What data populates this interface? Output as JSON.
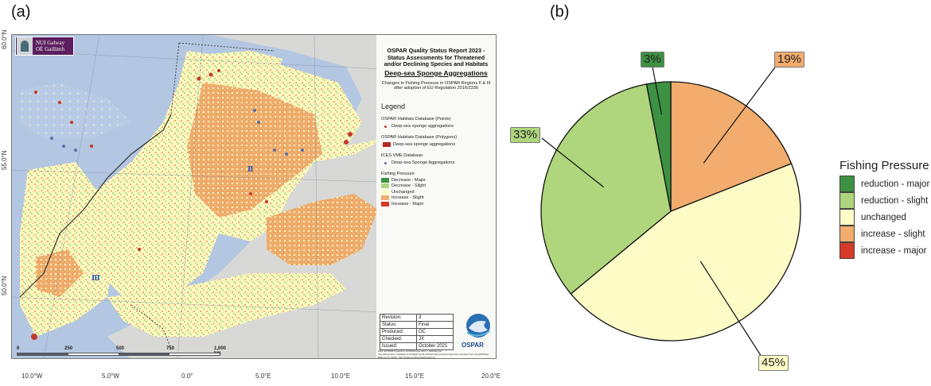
{
  "panels": {
    "a_label": "(a)",
    "b_label": "(b)"
  },
  "map": {
    "institution_badge": {
      "line1": "NUI Galway",
      "line2": "OÉ Gaillimh"
    },
    "title_lines": [
      "OSPAR Quality Status Report 2023 -",
      "Status Assessments for Threatened",
      "and/or Declining Species and Habitats"
    ],
    "subtitle": "Deep-sea Sponge Aggregations",
    "description": "Changes in Fishing Pressure in OSPAR Regions II & III after adoption of EU Regulation 2016/2336",
    "legend_heading": "Legend",
    "legend_groups": [
      {
        "title": "OSPAR Habitats Database (Points)",
        "item": "Deep-sea sponge aggregations",
        "symbol": "dot",
        "color": "#c0392b"
      },
      {
        "title": "OSPAR Habitats Database (Polygons)",
        "item": "Deep-sea sponge aggregations",
        "symbol": "swatch",
        "color": "#b22a22"
      },
      {
        "title": "ICES VME Database",
        "item": "Deep-sea Sponge Aggregations",
        "symbol": "dot",
        "color": "#5a6fa8"
      }
    ],
    "fishing_pressure": {
      "title": "Fishing Pressure",
      "items": [
        {
          "label": "Decrease - Major",
          "color": "#3d9142"
        },
        {
          "label": "Decrease - Slight",
          "color": "#afd67c"
        },
        {
          "label": "Unchanged",
          "color": "#fefcc6"
        },
        {
          "label": "Increase - Slight",
          "color": "#f2ac6e"
        },
        {
          "label": "Increase - Major",
          "color": "#d53a2a"
        }
      ]
    },
    "info_table": [
      {
        "key": "Revision:",
        "value": "3"
      },
      {
        "key": "Status:",
        "value": "Final"
      },
      {
        "key": "Produced:",
        "value": "OC"
      },
      {
        "key": "Checked:",
        "value": "JX"
      },
      {
        "key": "Issued:",
        "value": "October 2021"
      }
    ],
    "logo_text": "OSPAR",
    "footnote": [
      "CRS: ETRS89 Projection: ETRS89 extended / LAEA Europe",
      "The bathymetric metadata and Digital Terrain Model data products have been derived from the EMODnet",
      "Bathymetry portal - http://www.emodnet-bathymetry.eu"
    ],
    "region_labels": [
      "II",
      "III"
    ],
    "lat_labels": [
      "60.0°N",
      "55.0°N",
      "50.0°N"
    ],
    "lon_labels": [
      "10.0°W",
      "5.0°W",
      "0.0°",
      "5.0°E",
      "10.0°E",
      "15.0°E",
      "20.0°E"
    ],
    "scalebar": {
      "ticks": [
        "0",
        "250",
        "500",
        "750",
        "1,000 km"
      ]
    }
  },
  "chart_data": {
    "type": "pie",
    "title": "",
    "legend_title": "Fishing Pressure",
    "legend_position": "right",
    "start_angle": "12 o'clock",
    "direction": "clockwise",
    "categories": [
      "reduction - major",
      "reduction - slight",
      "unchanged",
      "increase - slight",
      "increase - major"
    ],
    "values": [
      3,
      33,
      45,
      19,
      0
    ],
    "unit": "%",
    "colors": [
      "#3d9142",
      "#afd67c",
      "#fefcc6",
      "#f2ac6e",
      "#d53a2a"
    ],
    "data_labels": [
      {
        "category": "reduction - major",
        "text": "3%"
      },
      {
        "category": "reduction - slight",
        "text": "33%"
      },
      {
        "category": "unchanged",
        "text": "45%"
      },
      {
        "category": "increase - slight",
        "text": "19%"
      }
    ]
  }
}
